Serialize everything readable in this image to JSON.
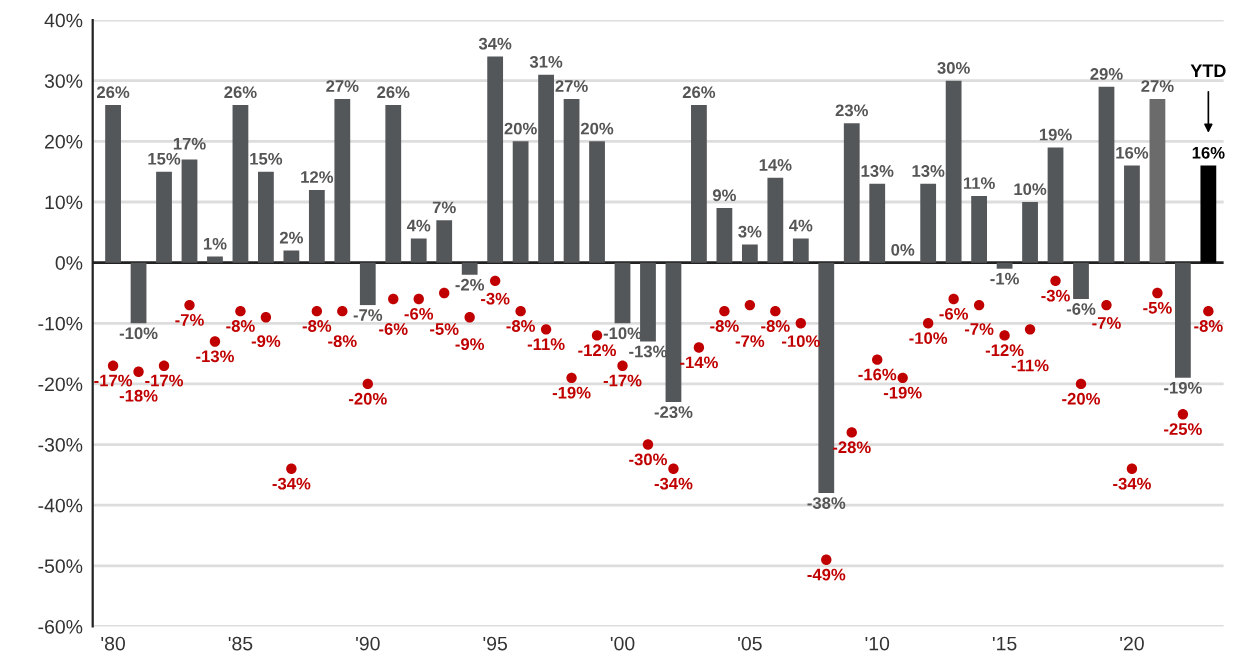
{
  "chart_data": {
    "type": "bar",
    "categories": [
      "'80",
      null,
      null,
      null,
      null,
      "'85",
      null,
      null,
      null,
      null,
      "'90",
      null,
      null,
      null,
      null,
      "'95",
      null,
      null,
      null,
      null,
      "'00",
      null,
      null,
      null,
      null,
      "'05",
      null,
      null,
      null,
      null,
      "'10",
      null,
      null,
      null,
      null,
      "'15",
      null,
      null,
      null,
      null,
      "'20",
      null,
      null,
      null
    ],
    "series": [
      {
        "colors": [
          "#54575a",
          "#54575a",
          "#54575a",
          "#54575a",
          "#54575a",
          "#54575a",
          "#54575a",
          "#54575a",
          "#54575a",
          "#54575a",
          "#54575a",
          "#54575a",
          "#54575a",
          "#54575a",
          "#54575a",
          "#54575a",
          "#54575a",
          "#54575a",
          "#54575a",
          "#54575a",
          "#54575a",
          "#54575a",
          "#54575a",
          "#54575a",
          "#54575a",
          "#54575a",
          "#54575a",
          "#54575a",
          "#54575a",
          "#54575a",
          "#54575a",
          "#54575a",
          "#54575a",
          "#54575a",
          "#54575a",
          "#54575a",
          "#54575a",
          "#54575a",
          "#54575a",
          "#54575a",
          "#54575a",
          "#6b6b6b",
          "#54575a",
          "#000000"
        ],
        "values": [
          26,
          -10,
          15,
          17,
          1,
          26,
          15,
          2,
          12,
          27,
          -7,
          26,
          4,
          7,
          -2,
          34,
          20,
          31,
          27,
          20,
          -10,
          -13,
          -23,
          26,
          9,
          3,
          14,
          4,
          -38,
          23,
          13,
          0,
          13,
          30,
          11,
          -1,
          10,
          19,
          -6,
          29,
          16,
          27,
          -19,
          16
        ],
        "value_labels": [
          "26%",
          "-10%",
          "15%",
          "17%",
          "1%",
          "26%",
          "15%",
          "2%",
          "12%",
          "27%",
          "-7%",
          "26%",
          "4%",
          "7%",
          "-2%",
          "34%",
          "20%",
          "31%",
          "27%",
          "20%",
          "-10%",
          "-13%",
          "-23%",
          "26%",
          "9%",
          "3%",
          "14%",
          "4%",
          "-38%",
          "23%",
          "13%",
          "0%",
          "13%",
          "30%",
          "11%",
          "-1%",
          "10%",
          "19%",
          "-6%",
          "29%",
          "16%",
          "27%",
          "-19%",
          "16%"
        ]
      },
      {
        "type": "scatter",
        "color": "#c00000",
        "marker": "circle",
        "values": [
          -17,
          -18,
          -17,
          -7,
          -13,
          -8,
          -9,
          -34,
          -8,
          -8,
          -20,
          -6,
          -6,
          -5,
          -9,
          -3,
          -8,
          -11,
          -19,
          -12,
          -17,
          -30,
          -34,
          -14,
          -8,
          -7,
          -8,
          -10,
          -49,
          -28,
          -16,
          -19,
          -10,
          -6,
          -7,
          -12,
          -11,
          -3,
          -20,
          -7,
          -34,
          -5,
          -25,
          -8
        ],
        "value_labels": [
          "-17%",
          "-18%",
          "-17%",
          "-7%",
          "-13%",
          "-8%",
          "-9%",
          "-34%",
          "-8%",
          "-8%",
          "-20%",
          "-6%",
          "-6%",
          "-5%",
          "-9%",
          "-3%",
          "-8%",
          "-11%",
          "-19%",
          "-12%",
          "-17%",
          "-30%",
          "-34%",
          "-14%",
          "-8%",
          "-7%",
          "-8%",
          "-10%",
          "-49%",
          "-28%",
          "-16%",
          "-19%",
          "-10%",
          "-6%",
          "-7%",
          "-12%",
          "-11%",
          "-3%",
          "-20%",
          "-7%",
          "-34%",
          "-5%",
          "-25%",
          "-8%"
        ]
      }
    ],
    "annotations": [
      "YTD"
    ],
    "ylim": [
      -60,
      40
    ],
    "yticks": [
      {
        "value": -60,
        "label": "-60%"
      },
      {
        "value": -50,
        "label": "-50%"
      },
      {
        "value": -40,
        "label": "-40%"
      },
      {
        "value": -30,
        "label": "-30%"
      },
      {
        "value": -20,
        "label": "-20%"
      },
      {
        "value": -10,
        "label": "-10%"
      },
      {
        "value": 0,
        "label": "0%"
      },
      {
        "value": 10,
        "label": "10%"
      },
      {
        "value": 20,
        "label": "20%"
      },
      {
        "value": 30,
        "label": "30%"
      },
      {
        "value": 40,
        "label": "40%"
      }
    ],
    "grid": "y",
    "legend": false
  }
}
